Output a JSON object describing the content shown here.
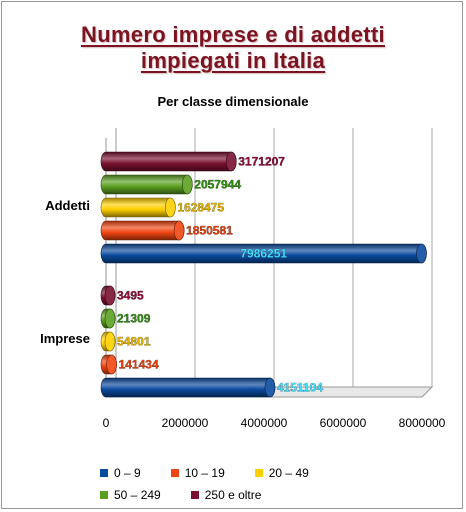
{
  "chart_data": {
    "type": "bar",
    "orientation": "horizontal",
    "title": "Numero imprese e di addetti impiegati in Italia",
    "title_lines": [
      "Numero imprese e di addetti",
      "impiegati in Italia"
    ],
    "subtitle": "Per classe dimensionale",
    "categories": [
      "Imprese",
      "Addetti"
    ],
    "xlim": [
      0,
      8000000
    ],
    "x_ticks": [
      "0",
      "2000000",
      "4000000",
      "6000000",
      "8000000"
    ],
    "grid": true,
    "legend_position": "bottom",
    "series": [
      {
        "name": "0 – 9",
        "color": "#0a4a9e",
        "label_color": "#40e0ff",
        "values": [
          4151104,
          7986251
        ],
        "value_labels": [
          "4151104",
          "7986251"
        ]
      },
      {
        "name": "10 – 19",
        "color": "#f04510",
        "label_color": "#e04010",
        "values": [
          141434,
          1850581
        ],
        "value_labels": [
          "141434",
          "1850581"
        ]
      },
      {
        "name": "20 – 49",
        "color": "#ffd000",
        "label_color": "#e0b000",
        "values": [
          54801,
          1628475
        ],
        "value_labels": [
          "54801",
          "1628475"
        ]
      },
      {
        "name": "50 – 249",
        "color": "#5aa020",
        "label_color": "#2f8a10",
        "values": [
          21309,
          2057944
        ],
        "value_labels": [
          "21309",
          "2057944"
        ]
      },
      {
        "name": "250 e oltre",
        "color": "#7a1030",
        "label_color": "#8a1035",
        "values": [
          3495,
          3171207
        ],
        "value_labels": [
          "3495",
          "3171207"
        ]
      }
    ]
  }
}
